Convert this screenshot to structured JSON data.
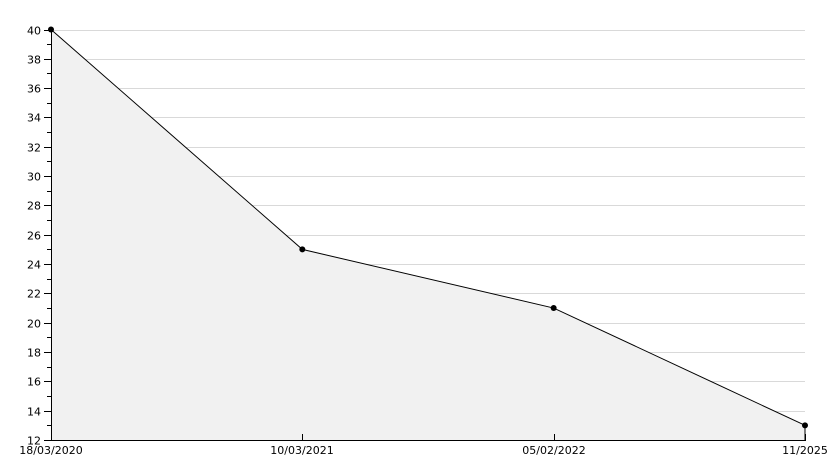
{
  "chart_data": {
    "type": "area",
    "title": "",
    "xlabel": "",
    "ylabel": "",
    "categories": [
      "18/03/2020",
      "10/03/2021",
      "05/02/2022",
      "11/2025"
    ],
    "series": [
      {
        "name": "value",
        "values": [
          40,
          25,
          21,
          13
        ]
      }
    ],
    "ylim": [
      12,
      40
    ],
    "ytick_step": 2,
    "minor_ytick_step": 1,
    "yticks": [
      12,
      14,
      16,
      18,
      20,
      22,
      24,
      26,
      28,
      30,
      32,
      34,
      36,
      38,
      40
    ],
    "grid": true,
    "legend": false,
    "colors": {
      "background": "#ffffff",
      "grid": "#d9d9d9",
      "fill": "#f1f1f1",
      "line": "#000000",
      "marker": "#000000",
      "axis": "#000000",
      "text": "#000000"
    }
  }
}
